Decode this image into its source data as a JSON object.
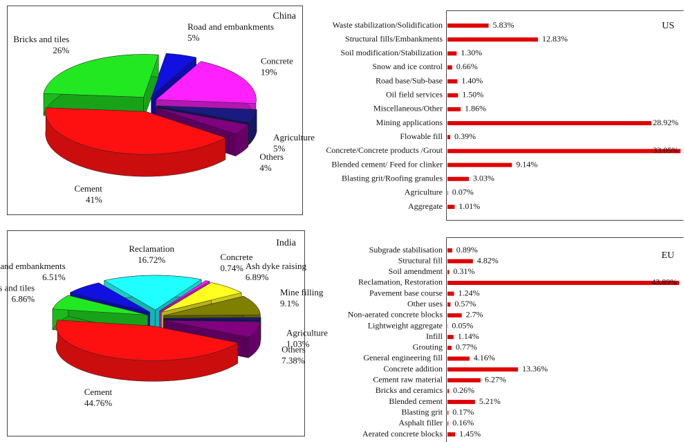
{
  "chart_data": [
    {
      "type": "pie",
      "title": "China",
      "categories": [
        "Bricks and tiles",
        "Road and embankments",
        "Concrete",
        "Agriculture",
        "Others",
        "Cement"
      ],
      "values": [
        26,
        5,
        19,
        5,
        4,
        41
      ],
      "value_labels": [
        "26%",
        "5%",
        "19%",
        "5%",
        "4%",
        "41%"
      ],
      "colors": [
        "#22e822",
        "#1010e0",
        "#ff20ff",
        "#1a1a80",
        "#800080",
        "#ff1010"
      ]
    },
    {
      "type": "bar",
      "title": "US",
      "categories": [
        "Waste stabilization/Solidification",
        "Structural fills/Embankments",
        "Soil modification/Stabilization",
        "Snow and ice control",
        "Road base/Sub-base",
        "Oil field services",
        "Miscellaneous/Other",
        "Mining applications",
        "Flowable fill",
        "Concrete/Concrete products /Grout",
        "Blended cement/ Feed for clinker",
        "Blasting grit/Roofing granules",
        "Agriculture",
        "Aggregate"
      ],
      "values": [
        5.83,
        12.83,
        1.3,
        0.66,
        1.4,
        1.5,
        1.86,
        28.92,
        0.39,
        33.05,
        9.14,
        3.03,
        0.07,
        1.01
      ],
      "value_labels": [
        "5.83%",
        "12.83%",
        "1.30%",
        "0.66%",
        "1.40%",
        "1.50%",
        "1.86%",
        "28.92%",
        "0.39%",
        "33.05%",
        "9.14%",
        "3.03%",
        "0.07%",
        "1.01%"
      ],
      "color": "#e00000"
    },
    {
      "type": "pie",
      "title": "India",
      "categories": [
        "Bricks and tiles",
        "Road and embankments",
        "Reclamation",
        "Concrete",
        "Ash dyke raising",
        "Mine filling",
        "Agriculture",
        "Others",
        "Cement"
      ],
      "values": [
        6.86,
        6.51,
        16.72,
        0.74,
        6.89,
        9.1,
        1.03,
        7.38,
        44.76
      ],
      "value_labels": [
        "6.86%",
        "6.51%",
        "16.72%",
        "0.74%",
        "6.89%",
        "9.1%",
        "1.03%",
        "7.38%",
        "44.76%"
      ],
      "colors": [
        "#22e822",
        "#1010e0",
        "#20ffff",
        "#ff20ff",
        "#ffff20",
        "#808000",
        "#1a1a80",
        "#800080",
        "#ff1010"
      ]
    },
    {
      "type": "bar",
      "title": "EU",
      "categories": [
        "Subgrade stabilisation",
        "Structural fill",
        "Soil amendment",
        "Reclamation, Restoration",
        "Pavement base course",
        "Other uses",
        "Non-aerated concrete blocks",
        "Lightweight aggregate",
        "Infill",
        "Grouting",
        "General engineering fill",
        "Concrete addition",
        "Cement raw material",
        "Bricks and ceramics",
        "Blended cement",
        "Blasting grit",
        "Asphalt filler",
        "Aerated concrete blocks"
      ],
      "values": [
        0.89,
        4.82,
        0.31,
        43.89,
        1.24,
        0.57,
        2.7,
        0.05,
        1.14,
        0.77,
        4.16,
        13.36,
        6.27,
        0.26,
        5.21,
        0.17,
        0.16,
        1.45
      ],
      "value_labels": [
        "0.89%",
        "4.82%",
        "0.31%",
        "43.89%",
        "1.24%",
        "0.57%",
        "2.7%",
        "0.05%",
        "1.14%",
        "0.77%",
        "4.16%",
        "13.36%",
        "6.27%",
        "0.26%",
        "5.21%",
        "0.17%",
        "0.16%",
        "1.45%"
      ],
      "color": "#e00000"
    }
  ]
}
